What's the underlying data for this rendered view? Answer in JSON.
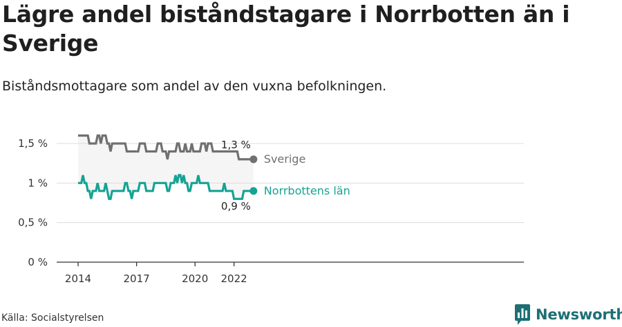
{
  "title": "Lägre andel biståndstagare i Norrbotten än i Sverige",
  "subtitle": "Biståndsmottagare som andel av den vuxna befolkningen.",
  "source": "Källa: Socialstyrelsen",
  "brand": "Newsworthy",
  "colors": {
    "sverige": "#707071",
    "norrbotten": "#16a393",
    "band": "#f5f5f5",
    "grid": "#dcdcdc",
    "brand": "#1d6f73"
  },
  "chart_data": {
    "type": "line",
    "x_ticks": [
      "2014",
      "2017",
      "2020",
      "2022"
    ],
    "y_ticks": [
      "0 %",
      "0,5 %",
      "1 %",
      "1,5 %"
    ],
    "ylim": [
      0,
      1.6
    ],
    "x_range": [
      "2014-01",
      "2022-03"
    ],
    "grid": true,
    "series": [
      {
        "name": "Sverige",
        "end_label": "1,3 %",
        "segments": [
          {
            "start": "2014-01",
            "values": [
              1.6,
              1.6,
              1.6,
              1.6,
              1.6,
              1.6,
              1.6,
              1.5,
              1.5,
              1.5,
              1.5,
              1.5,
              1.6,
              1.6,
              1.5,
              1.6,
              1.6,
              1.6,
              1.5,
              1.5,
              1.4,
              1.5,
              1.5,
              1.5,
              1.5,
              1.5,
              1.5,
              1.5,
              1.5,
              1.5,
              1.4,
              1.4,
              1.4,
              1.4,
              1.4,
              1.4,
              1.4
            ]
          },
          {
            "start": "2017-01",
            "values": [
              1.4,
              1.4,
              1.5,
              1.5,
              1.5,
              1.5,
              1.4,
              1.4,
              1.4,
              1.4,
              1.4,
              1.4,
              1.4,
              1.5,
              1.5,
              1.5,
              1.4,
              1.4,
              1.4,
              1.3,
              1.4,
              1.4,
              1.4,
              1.4,
              1.4,
              1.5,
              1.5,
              1.4,
              1.4,
              1.4,
              1.5,
              1.4,
              1.4,
              1.4,
              1.5,
              1.4,
              1.4,
              1.4,
              1.4,
              1.4,
              1.5,
              1.5,
              1.5,
              1.4,
              1.5,
              1.5,
              1.5,
              1.4,
              1.4,
              1.4,
              1.4,
              1.4,
              1.4,
              1.4,
              1.4,
              1.4,
              1.4,
              1.4,
              1.4,
              1.4,
              1.4,
              1.4,
              1.4,
              1.3,
              1.3,
              1.3,
              1.3,
              1.3,
              1.3,
              1.3,
              1.3,
              1.3,
              1.3
            ]
          }
        ]
      },
      {
        "name": "Norrbottens län",
        "end_label": "0,9 %",
        "segments": [
          {
            "start": "2014-01",
            "values": [
              1.0,
              1.0,
              1.0,
              1.1,
              1.0,
              1.0,
              0.9,
              0.9,
              0.8,
              0.9,
              0.9,
              0.9,
              1.0,
              0.9,
              0.9,
              0.9,
              0.9,
              1.0,
              0.9,
              0.8,
              0.8,
              0.9,
              0.9,
              0.9,
              0.9,
              0.9,
              0.9,
              0.9,
              0.9,
              1.0,
              1.0,
              0.9,
              0.9,
              0.8,
              0.9,
              0.9,
              0.9
            ]
          },
          {
            "start": "2017-01",
            "values": [
              0.9,
              0.9,
              1.0,
              1.0,
              1.0,
              1.0,
              0.9,
              0.9,
              0.9,
              0.9,
              0.9,
              1.0,
              1.0,
              1.0,
              1.0,
              1.0,
              1.0,
              1.0,
              1.0,
              0.9,
              0.9,
              1.0,
              1.0,
              1.0,
              1.1,
              1.0,
              1.1,
              1.1,
              1.0,
              1.1,
              1.0,
              1.0,
              0.9,
              0.9,
              1.0,
              1.0,
              1.0,
              1.0,
              1.1,
              1.0,
              1.0,
              1.0,
              1.0,
              1.0,
              1.0,
              0.9,
              0.9,
              0.9,
              0.9,
              0.9,
              0.9,
              0.9,
              0.9,
              0.9,
              1.0,
              0.9,
              0.9,
              0.9,
              0.9,
              0.9,
              0.8,
              0.8,
              0.8,
              0.8,
              0.8,
              0.8,
              0.9,
              0.9,
              0.9,
              0.9,
              0.9,
              0.9,
              0.9
            ]
          }
        ]
      }
    ]
  }
}
